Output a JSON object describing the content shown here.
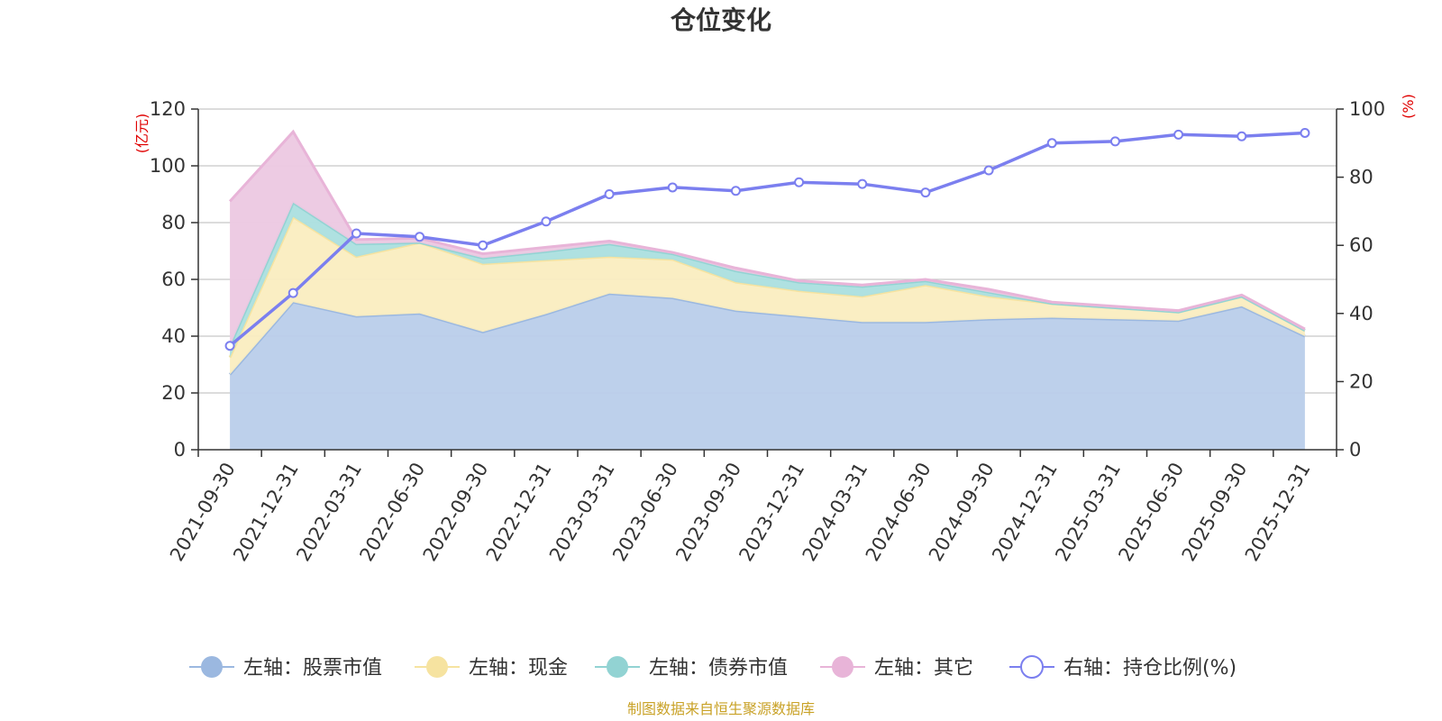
{
  "chart_data": {
    "type": "area",
    "title": "仓位变化",
    "source": "制图数据来自恒生聚源数据库",
    "left_axis": {
      "unit": "(亿元)",
      "min": 0,
      "max": 120,
      "ticks": [
        0,
        20,
        40,
        60,
        80,
        100,
        120
      ]
    },
    "right_axis": {
      "unit": "(%)",
      "min": 0,
      "max": 100,
      "ticks": [
        0,
        20,
        40,
        60,
        80,
        100
      ]
    },
    "categories": [
      "2021-09-30",
      "2021-12-31",
      "2022-03-31",
      "2022-06-30",
      "2022-09-30",
      "2022-12-31",
      "2023-03-31",
      "2023-06-30",
      "2023-09-30",
      "2023-12-31",
      "2024-03-31",
      "2024-06-30",
      "2024-09-30",
      "2024-12-31",
      "2025-03-31",
      "2025-06-30",
      "2025-09-30",
      "2025-12-31"
    ],
    "series": [
      {
        "name": "左轴：股票市值",
        "axis": "left",
        "color": "#9bb8e0",
        "fill": "#b9cdea",
        "values": [
          26.5,
          52,
          47,
          48,
          41.5,
          47.8,
          55,
          53.5,
          49,
          47,
          45,
          45,
          46,
          46.5,
          46,
          45.5,
          50.5,
          40
        ]
      },
      {
        "name": "左轴：现金",
        "axis": "left",
        "color": "#f6e3a0",
        "fill": "#faedc0",
        "values": [
          6,
          30,
          21,
          25,
          24,
          19,
          13,
          13.5,
          10,
          9,
          9,
          13,
          8,
          5,
          4,
          3,
          3.5,
          2
        ]
      },
      {
        "name": "左轴：债券市值",
        "axis": "left",
        "color": "#92d3d3",
        "fill": "#abdfdf",
        "values": [
          4,
          5,
          4.5,
          0,
          2,
          3,
          4.5,
          2,
          4,
          3,
          3.5,
          1.5,
          1.5,
          0,
          0,
          0,
          0,
          0
        ]
      },
      {
        "name": "左轴：其它",
        "axis": "left",
        "color": "#e8b4d8",
        "fill": "#ecc8e2",
        "values": [
          51,
          25,
          1.5,
          1.5,
          1.5,
          1.5,
          1,
          0.5,
          1,
          0.5,
          0.5,
          0.5,
          1,
          0.5,
          0.5,
          0.5,
          0.5,
          0.5
        ]
      },
      {
        "name": "右轴：持仓比例(%)",
        "axis": "right",
        "type": "line",
        "color": "#7b7fef",
        "values": [
          30.5,
          46,
          63.5,
          62.5,
          60,
          67,
          75,
          77,
          76,
          78.5,
          78,
          75.5,
          82,
          90,
          90.5,
          92.5,
          92,
          93
        ]
      }
    ]
  }
}
